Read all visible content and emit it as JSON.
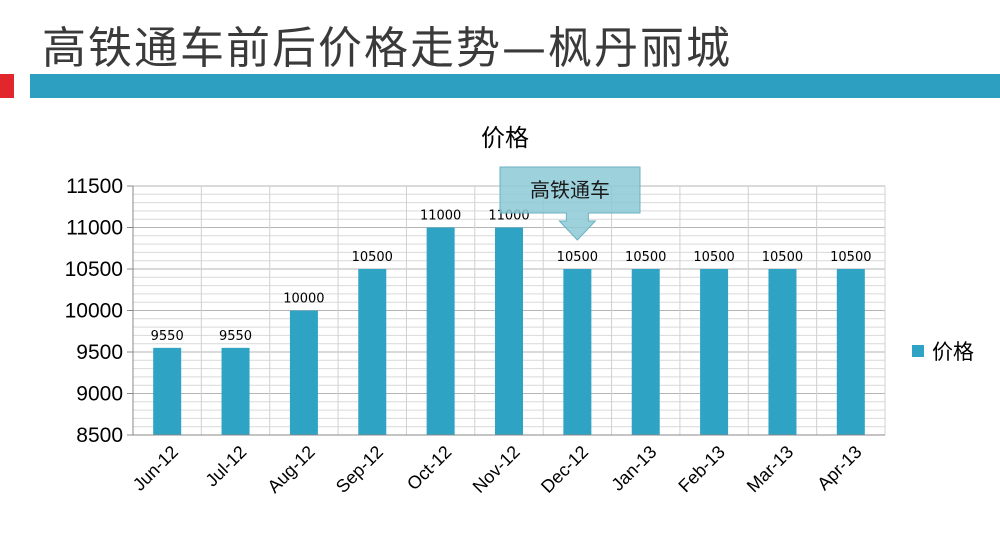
{
  "slide": {
    "title": "高铁通车前后价格走势—枫丹丽城",
    "accent": "#2d9fc0",
    "marker_color": "#e1262c"
  },
  "chart_data": {
    "type": "bar",
    "title": "价格",
    "categories": [
      "Jun-12",
      "Jul-12",
      "Aug-12",
      "Sep-12",
      "Oct-12",
      "Nov-12",
      "Dec-12",
      "Jan-13",
      "Feb-13",
      "Mar-13",
      "Apr-13"
    ],
    "series": [
      {
        "name": "价格",
        "values": [
          9550,
          9550,
          10000,
          10500,
          11000,
          11000,
          10500,
          10500,
          10500,
          10500,
          10500
        ],
        "color": "#2ea3c3"
      }
    ],
    "ylim": [
      8500,
      11500
    ],
    "yticks": [
      8500,
      9000,
      9500,
      10000,
      10500,
      11000,
      11500
    ],
    "grid": true,
    "legend": "right",
    "annotation": {
      "text": "高铁通车",
      "category": "Dec-12"
    }
  }
}
